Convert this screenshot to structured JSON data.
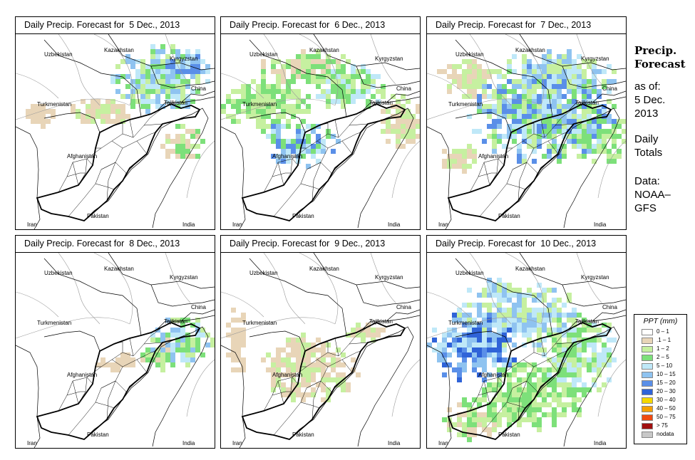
{
  "panels": [
    {
      "title": "Daily Precip. Forecast for  5 Dec., 2013"
    },
    {
      "title": "Daily Precip. Forecast for  6 Dec., 2013"
    },
    {
      "title": "Daily Precip. Forecast for  7 Dec., 2013"
    },
    {
      "title": "Daily Precip. Forecast for  8 Dec., 2013"
    },
    {
      "title": "Daily Precip. Forecast for  9 Dec., 2013"
    },
    {
      "title": "Daily Precip. Forecast for  10 Dec., 2013"
    }
  ],
  "countries": {
    "uzbekistan": "Uzbekistan",
    "kazakhstan": "Kazakhstan",
    "kyrgyzstan": "Kyrgyzstan",
    "turkmenistan": "Turkmenistan",
    "china": "China",
    "tajikistan": "Tajikistan",
    "afghanistan": "Afghanistan",
    "pakistan": "Pakistan",
    "iran": "Iran",
    "india": "India"
  },
  "sidebar": {
    "title_line1": "Precip.",
    "title_line2": "Forecast",
    "asof_line1": "as of:",
    "asof_line2": "5 Dec.",
    "asof_line3": "2013",
    "totals_line1": "Daily",
    "totals_line2": "Totals",
    "data_line1": "Data:",
    "data_line2": "NOAA–",
    "data_line3": "GFS"
  },
  "legend": {
    "title": "PPT (mm)",
    "items": [
      {
        "label": "0 – 1",
        "color": "#ffffff"
      },
      {
        "label": ".1 – 1",
        "color": "#e8d5b8"
      },
      {
        "label": "1 – 2",
        "color": "#c6f0a0"
      },
      {
        "label": "2 – 5",
        "color": "#7de07a"
      },
      {
        "label": "5 – 10",
        "color": "#bfe8f8"
      },
      {
        "label": "10 – 15",
        "color": "#8fc3f0"
      },
      {
        "label": "15 – 20",
        "color": "#5a8fe8"
      },
      {
        "label": "20 – 30",
        "color": "#2f63d8"
      },
      {
        "label": "30 – 40",
        "color": "#f5d800"
      },
      {
        "label": "40 – 50",
        "color": "#f5a000"
      },
      {
        "label": "50 – 75",
        "color": "#f04a10"
      },
      {
        "label": "> 75",
        "color": "#a01010"
      },
      {
        "label": "nodata",
        "color": "#c8c8c8"
      }
    ]
  }
}
